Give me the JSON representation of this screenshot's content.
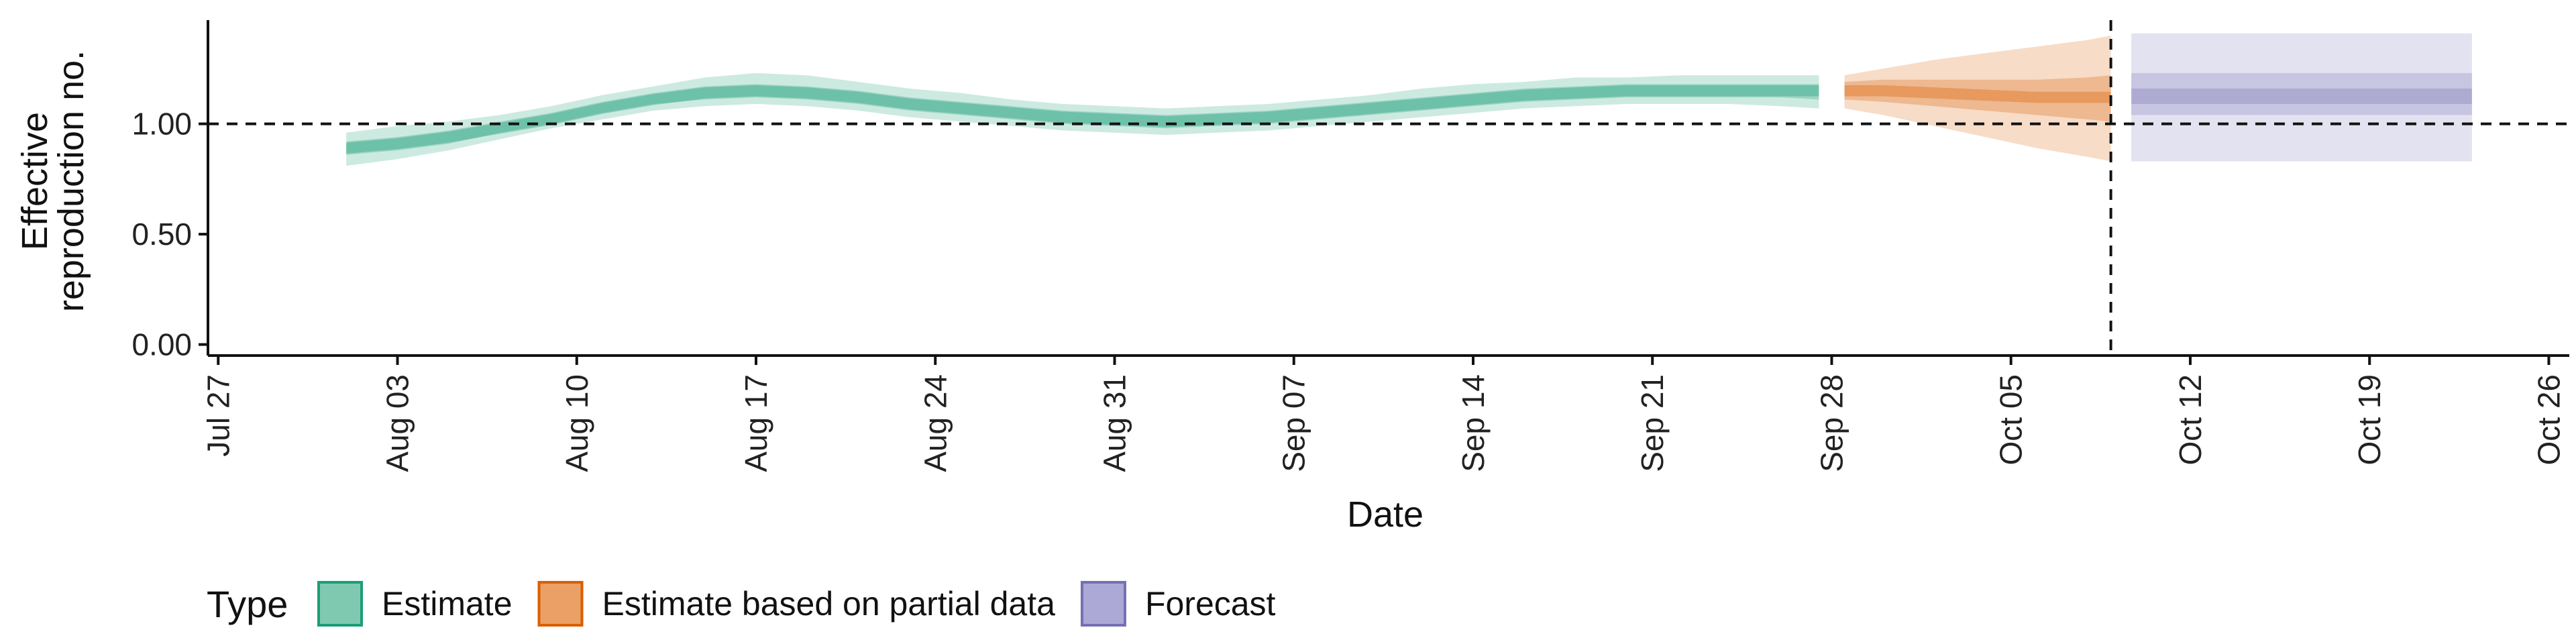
{
  "chart_data": {
    "type": "area",
    "title": "",
    "xlabel": "Date",
    "ylabel_line1": "Effective",
    "ylabel_line2": "reproduction no.",
    "reference_value": 1.0,
    "ylim": [
      -0.05,
      1.47
    ],
    "y_ticks": [
      {
        "value": 0.0,
        "label": "0.00"
      },
      {
        "value": 0.5,
        "label": "0.50"
      },
      {
        "value": 1.0,
        "label": "1.00"
      }
    ],
    "x_ticks": [
      {
        "day": -5,
        "label": "Jul 27"
      },
      {
        "day": 2,
        "label": "Aug 03"
      },
      {
        "day": 9,
        "label": "Aug 10"
      },
      {
        "day": 16,
        "label": "Aug 17"
      },
      {
        "day": 23,
        "label": "Aug 24"
      },
      {
        "day": 30,
        "label": "Aug 31"
      },
      {
        "day": 37,
        "label": "Sep 07"
      },
      {
        "day": 44,
        "label": "Sep 14"
      },
      {
        "day": 51,
        "label": "Sep 21"
      },
      {
        "day": 58,
        "label": "Sep 28"
      },
      {
        "day": 65,
        "label": "Oct 05"
      },
      {
        "day": 72,
        "label": "Oct 12"
      },
      {
        "day": 79,
        "label": "Oct 19"
      },
      {
        "day": 86,
        "label": "Oct 26"
      }
    ],
    "xlim": [
      -5.4,
      86.8
    ],
    "day_zero": "Aug 01",
    "forecast_cutoff_day": 68.9,
    "series": [
      {
        "name": "Estimate",
        "color": "#1b9e77",
        "x": [
          0,
          2,
          4,
          6,
          8,
          10,
          12,
          14,
          16,
          18,
          20,
          22,
          24,
          26,
          28,
          30,
          32,
          34,
          36,
          38,
          40,
          42,
          44,
          46,
          48,
          50,
          52,
          54,
          56,
          57.5
        ],
        "median": [
          0.89,
          0.91,
          0.94,
          0.98,
          1.02,
          1.07,
          1.11,
          1.14,
          1.15,
          1.14,
          1.12,
          1.09,
          1.07,
          1.05,
          1.03,
          1.02,
          1.01,
          1.02,
          1.03,
          1.05,
          1.07,
          1.09,
          1.11,
          1.13,
          1.14,
          1.15,
          1.15,
          1.15,
          1.15,
          1.15
        ],
        "lower_outer": [
          0.81,
          0.84,
          0.88,
          0.93,
          0.98,
          1.02,
          1.06,
          1.08,
          1.09,
          1.08,
          1.06,
          1.03,
          1.01,
          0.99,
          0.97,
          0.96,
          0.95,
          0.96,
          0.97,
          0.99,
          1.01,
          1.03,
          1.05,
          1.07,
          1.08,
          1.09,
          1.09,
          1.09,
          1.08,
          1.07
        ],
        "upper_outer": [
          0.96,
          0.99,
          1.01,
          1.04,
          1.08,
          1.13,
          1.17,
          1.21,
          1.23,
          1.22,
          1.19,
          1.16,
          1.14,
          1.11,
          1.09,
          1.08,
          1.07,
          1.08,
          1.09,
          1.11,
          1.13,
          1.16,
          1.18,
          1.19,
          1.21,
          1.21,
          1.22,
          1.22,
          1.22,
          1.22
        ],
        "lower_mid": [
          0.86,
          0.88,
          0.91,
          0.96,
          1.0,
          1.05,
          1.09,
          1.11,
          1.12,
          1.11,
          1.09,
          1.06,
          1.04,
          1.02,
          1.0,
          0.99,
          0.98,
          0.99,
          1.0,
          1.02,
          1.04,
          1.06,
          1.08,
          1.1,
          1.11,
          1.12,
          1.12,
          1.12,
          1.12,
          1.11
        ],
        "upper_mid": [
          0.92,
          0.94,
          0.97,
          1.01,
          1.05,
          1.1,
          1.14,
          1.17,
          1.18,
          1.17,
          1.15,
          1.12,
          1.1,
          1.08,
          1.06,
          1.05,
          1.04,
          1.05,
          1.06,
          1.08,
          1.1,
          1.12,
          1.14,
          1.16,
          1.17,
          1.18,
          1.18,
          1.18,
          1.18,
          1.18
        ]
      },
      {
        "name": "Estimate based on partial data",
        "color": "#d95f02",
        "x": [
          58.5,
          60,
          62,
          64,
          66,
          68,
          68.9
        ],
        "median": [
          1.15,
          1.15,
          1.14,
          1.13,
          1.12,
          1.12,
          1.12
        ],
        "lower_outer": [
          1.07,
          1.04,
          0.99,
          0.94,
          0.89,
          0.85,
          0.83
        ],
        "upper_outer": [
          1.22,
          1.25,
          1.29,
          1.32,
          1.35,
          1.38,
          1.4
        ],
        "lower_mid": [
          1.11,
          1.1,
          1.08,
          1.06,
          1.04,
          1.02,
          1.01
        ],
        "upper_mid": [
          1.19,
          1.2,
          1.2,
          1.2,
          1.2,
          1.21,
          1.22
        ]
      },
      {
        "name": "Forecast",
        "color": "#7570b3",
        "x_start": 69.7,
        "x_end": 83.0,
        "median": 1.12,
        "lower_outer": 0.83,
        "upper_outer": 1.41,
        "lower_mid": 1.04,
        "upper_mid": 1.23,
        "lower_inner": 1.09,
        "upper_inner": 1.16
      }
    ]
  },
  "legend": {
    "title": "Type",
    "items": [
      {
        "label": "Estimate",
        "fill": "#7fc9b1",
        "stroke": "#1b9e77"
      },
      {
        "label": "Estimate based on partial data",
        "fill": "#eba066",
        "stroke": "#d95f02"
      },
      {
        "label": "Forecast",
        "fill": "#aca9d6",
        "stroke": "#7570b3"
      }
    ]
  }
}
